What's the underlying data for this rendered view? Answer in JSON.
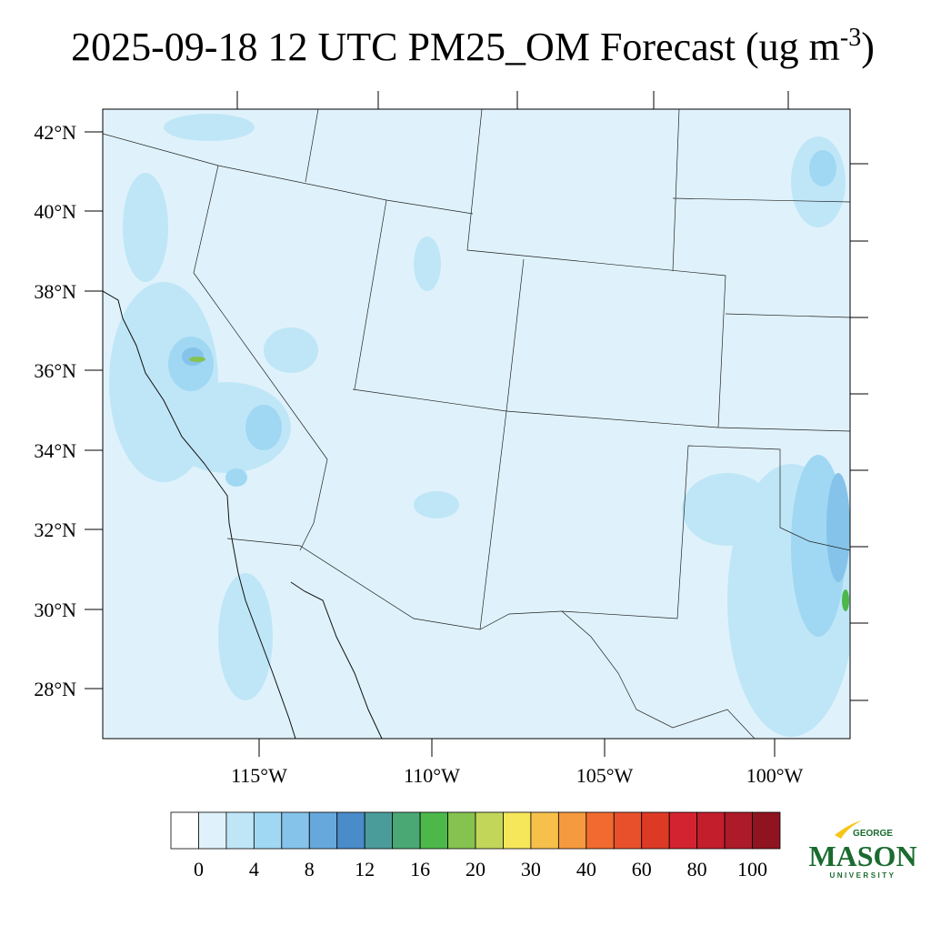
{
  "title": {
    "text": "2025-09-18 12 UTC PM25_OM Forecast (ug m",
    "superscript": "-3",
    "closing": ")"
  },
  "map": {
    "lat_labels": [
      "42°N",
      "40°N",
      "38°N",
      "36°N",
      "34°N",
      "32°N",
      "30°N",
      "28°N"
    ],
    "lon_labels": [
      "115°W",
      "110°W",
      "105°W",
      "100°W"
    ]
  },
  "colorbar": {
    "levels": [
      0,
      4,
      8,
      12,
      16,
      20,
      30,
      40,
      60,
      80,
      100
    ],
    "colors": [
      "#ffffff",
      "#dff2fb",
      "#bfe6f7",
      "#a0d8f3",
      "#85c3ea",
      "#67a8dc",
      "#4a8bc9",
      "#4a9c9b",
      "#4aa874",
      "#4cb84a",
      "#85c24f",
      "#c2d65a",
      "#f5e65a",
      "#f7c04b",
      "#f59a3e",
      "#f26a2f",
      "#e8502c",
      "#dd3a26",
      "#d42330",
      "#c21e2c",
      "#ad1a28",
      "#8f1420"
    ]
  },
  "logo": {
    "top": "GEORGE",
    "main": "MASON",
    "bottom": "UNIVERSITY"
  }
}
